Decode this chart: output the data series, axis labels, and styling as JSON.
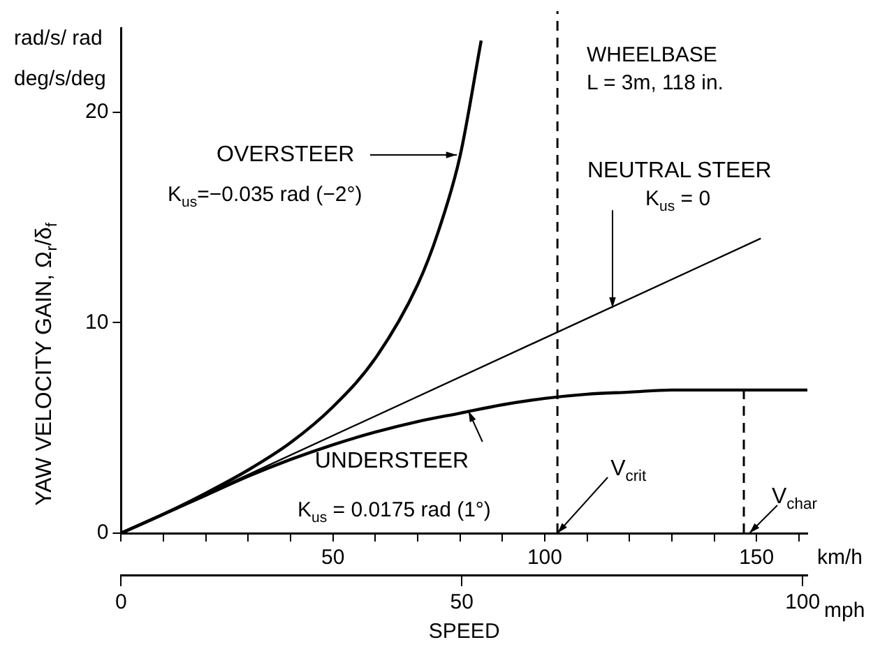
{
  "chart_data": {
    "type": "line",
    "ylabel": "YAW VELOCITY GAIN, Ω$_{r}$/δ$_{f}$",
    "xlabel": "SPEED",
    "marker": "none",
    "xlim": [
      0,
      162
    ],
    "xticks": [
      {
        "value": 0,
        "label": null
      },
      {
        "value": 10,
        "label": null
      },
      {
        "value": 20,
        "label": null
      },
      {
        "value": 30,
        "label": null
      },
      {
        "value": 40,
        "label": null
      },
      50,
      {
        "value": 60,
        "label": null
      },
      {
        "value": 70,
        "label": null
      },
      {
        "value": 80,
        "label": null
      },
      {
        "value": 90,
        "label": null
      },
      100,
      {
        "value": 110,
        "label": null
      },
      {
        "value": 120,
        "label": null
      },
      {
        "value": 130,
        "label": null
      },
      {
        "value": 140,
        "label": null
      },
      150,
      {
        "value": 160,
        "label": null
      }
    ],
    "x2lim": [
      0,
      100.7
    ],
    "x2ticks": [
      0,
      50,
      100
    ],
    "ylim": [
      0,
      24
    ],
    "yticks": [
      0,
      10,
      20
    ],
    "series": [
      {
        "color": "#000000",
        "x": [
          0,
          10,
          20,
          30,
          40,
          50,
          60,
          70,
          75,
          80,
          85
        ],
        "values": [
          0,
          0.9,
          1.9,
          3.0,
          4.3,
          6.0,
          8.3,
          11.8,
          14.4,
          17.9,
          23.4
        ]
      },
      {
        "color": "#000000",
        "x": [
          0,
          151
        ],
        "values": [
          0,
          14.0
        ]
      },
      {
        "color": "#000000",
        "x": [
          0,
          10,
          20,
          30,
          40,
          50,
          60,
          70,
          80,
          90,
          100,
          110,
          120,
          130,
          140,
          150,
          162
        ],
        "values": [
          0,
          0.9,
          1.8,
          2.7,
          3.5,
          4.2,
          4.8,
          5.3,
          5.7,
          6.1,
          6.4,
          6.6,
          6.7,
          6.8,
          6.8,
          6.8,
          6.8
        ]
      },
      {
        "type": "line",
        "color": "#000000",
        "line_style": "dashed",
        "x": [
          147,
          147
        ],
        "values": [
          0,
          6.8
        ]
      }
    ],
    "ref_lines": [
      {
        "axis": "x",
        "value": 103,
        "color": "#000000",
        "line_style": "dashed"
      }
    ],
    "annotations": [
      "OVERSTEER",
      {
        "text": "NEUTRAL STEER",
        "x": 116,
        "y": 10.7
      },
      {
        "text": "UNDERSTEER",
        "x": 82,
        "y": 5.8
      },
      {
        "text": "V$_{crit}$",
        "x": 103,
        "y": 0
      },
      {
        "text": "V$_{char}$",
        "x": 147,
        "y": 0
      },
      "K$_{us}$=−0.035 rad (−2°)",
      "K$_{us}$ = 0",
      "K$_{us}$ = 0.0175 rad (1°)",
      "WHEELBASE",
      "L = 3m, 118 in.",
      "rad/s/ rad",
      "deg/s/deg",
      "km/h",
      "mph"
    ]
  }
}
